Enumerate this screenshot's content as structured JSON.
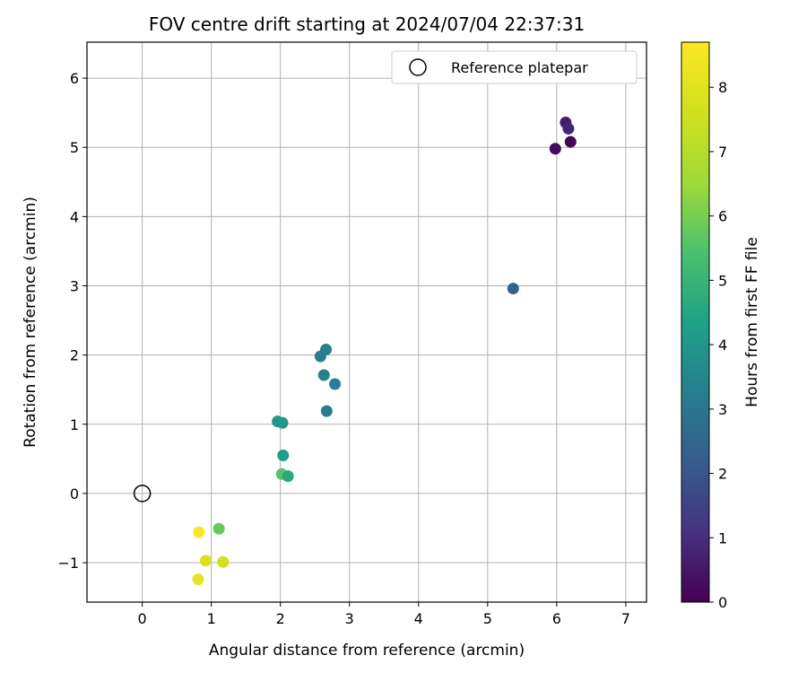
{
  "chart_data": {
    "type": "scatter",
    "title": "FOV centre drift starting at 2024/07/04 22:37:31",
    "xlabel": "Angular distance from reference (arcmin)",
    "ylabel": "Rotation from reference (arcmin)",
    "xlim": [
      -0.8,
      7.3
    ],
    "ylim": [
      -1.57,
      6.52
    ],
    "xticks": [
      0,
      1,
      2,
      3,
      4,
      5,
      6,
      7
    ],
    "yticks": [
      -1,
      0,
      1,
      2,
      3,
      4,
      5,
      6
    ],
    "grid": true,
    "legend": {
      "placement": "top-right",
      "entries": [
        "Reference platepar"
      ]
    },
    "reference_point": {
      "x": 0,
      "y": 0,
      "label": "Reference platepar"
    },
    "colorbar": {
      "label": "Hours from first FF file",
      "range": [
        0,
        8.7
      ],
      "ticks": [
        0,
        1,
        2,
        3,
        4,
        5,
        6,
        7,
        8
      ],
      "colormap": "viridis"
    },
    "points": [
      {
        "x": 6.13,
        "y": 5.36,
        "hours": 0.6
      },
      {
        "x": 6.17,
        "y": 5.27,
        "hours": 0.8
      },
      {
        "x": 6.2,
        "y": 5.08,
        "hours": 0.1
      },
      {
        "x": 5.98,
        "y": 4.98,
        "hours": 0.2
      },
      {
        "x": 5.37,
        "y": 2.96,
        "hours": 2.4
      },
      {
        "x": 2.66,
        "y": 2.08,
        "hours": 3.2
      },
      {
        "x": 2.58,
        "y": 1.98,
        "hours": 3.2
      },
      {
        "x": 2.63,
        "y": 1.71,
        "hours": 3.3
      },
      {
        "x": 2.79,
        "y": 1.58,
        "hours": 3.3
      },
      {
        "x": 2.67,
        "y": 1.19,
        "hours": 3.2
      },
      {
        "x": 1.96,
        "y": 1.04,
        "hours": 4.0
      },
      {
        "x": 2.03,
        "y": 1.02,
        "hours": 4.1
      },
      {
        "x": 2.04,
        "y": 0.55,
        "hours": 4.2
      },
      {
        "x": 2.02,
        "y": 0.28,
        "hours": 5.6
      },
      {
        "x": 2.11,
        "y": 0.25,
        "hours": 4.6
      },
      {
        "x": 1.11,
        "y": -0.51,
        "hours": 5.8
      },
      {
        "x": 0.82,
        "y": -0.56,
        "hours": 8.6
      },
      {
        "x": 0.92,
        "y": -0.97,
        "hours": 7.9
      },
      {
        "x": 1.17,
        "y": -0.99,
        "hours": 7.6
      },
      {
        "x": 0.81,
        "y": -1.24,
        "hours": 8.1
      }
    ]
  }
}
